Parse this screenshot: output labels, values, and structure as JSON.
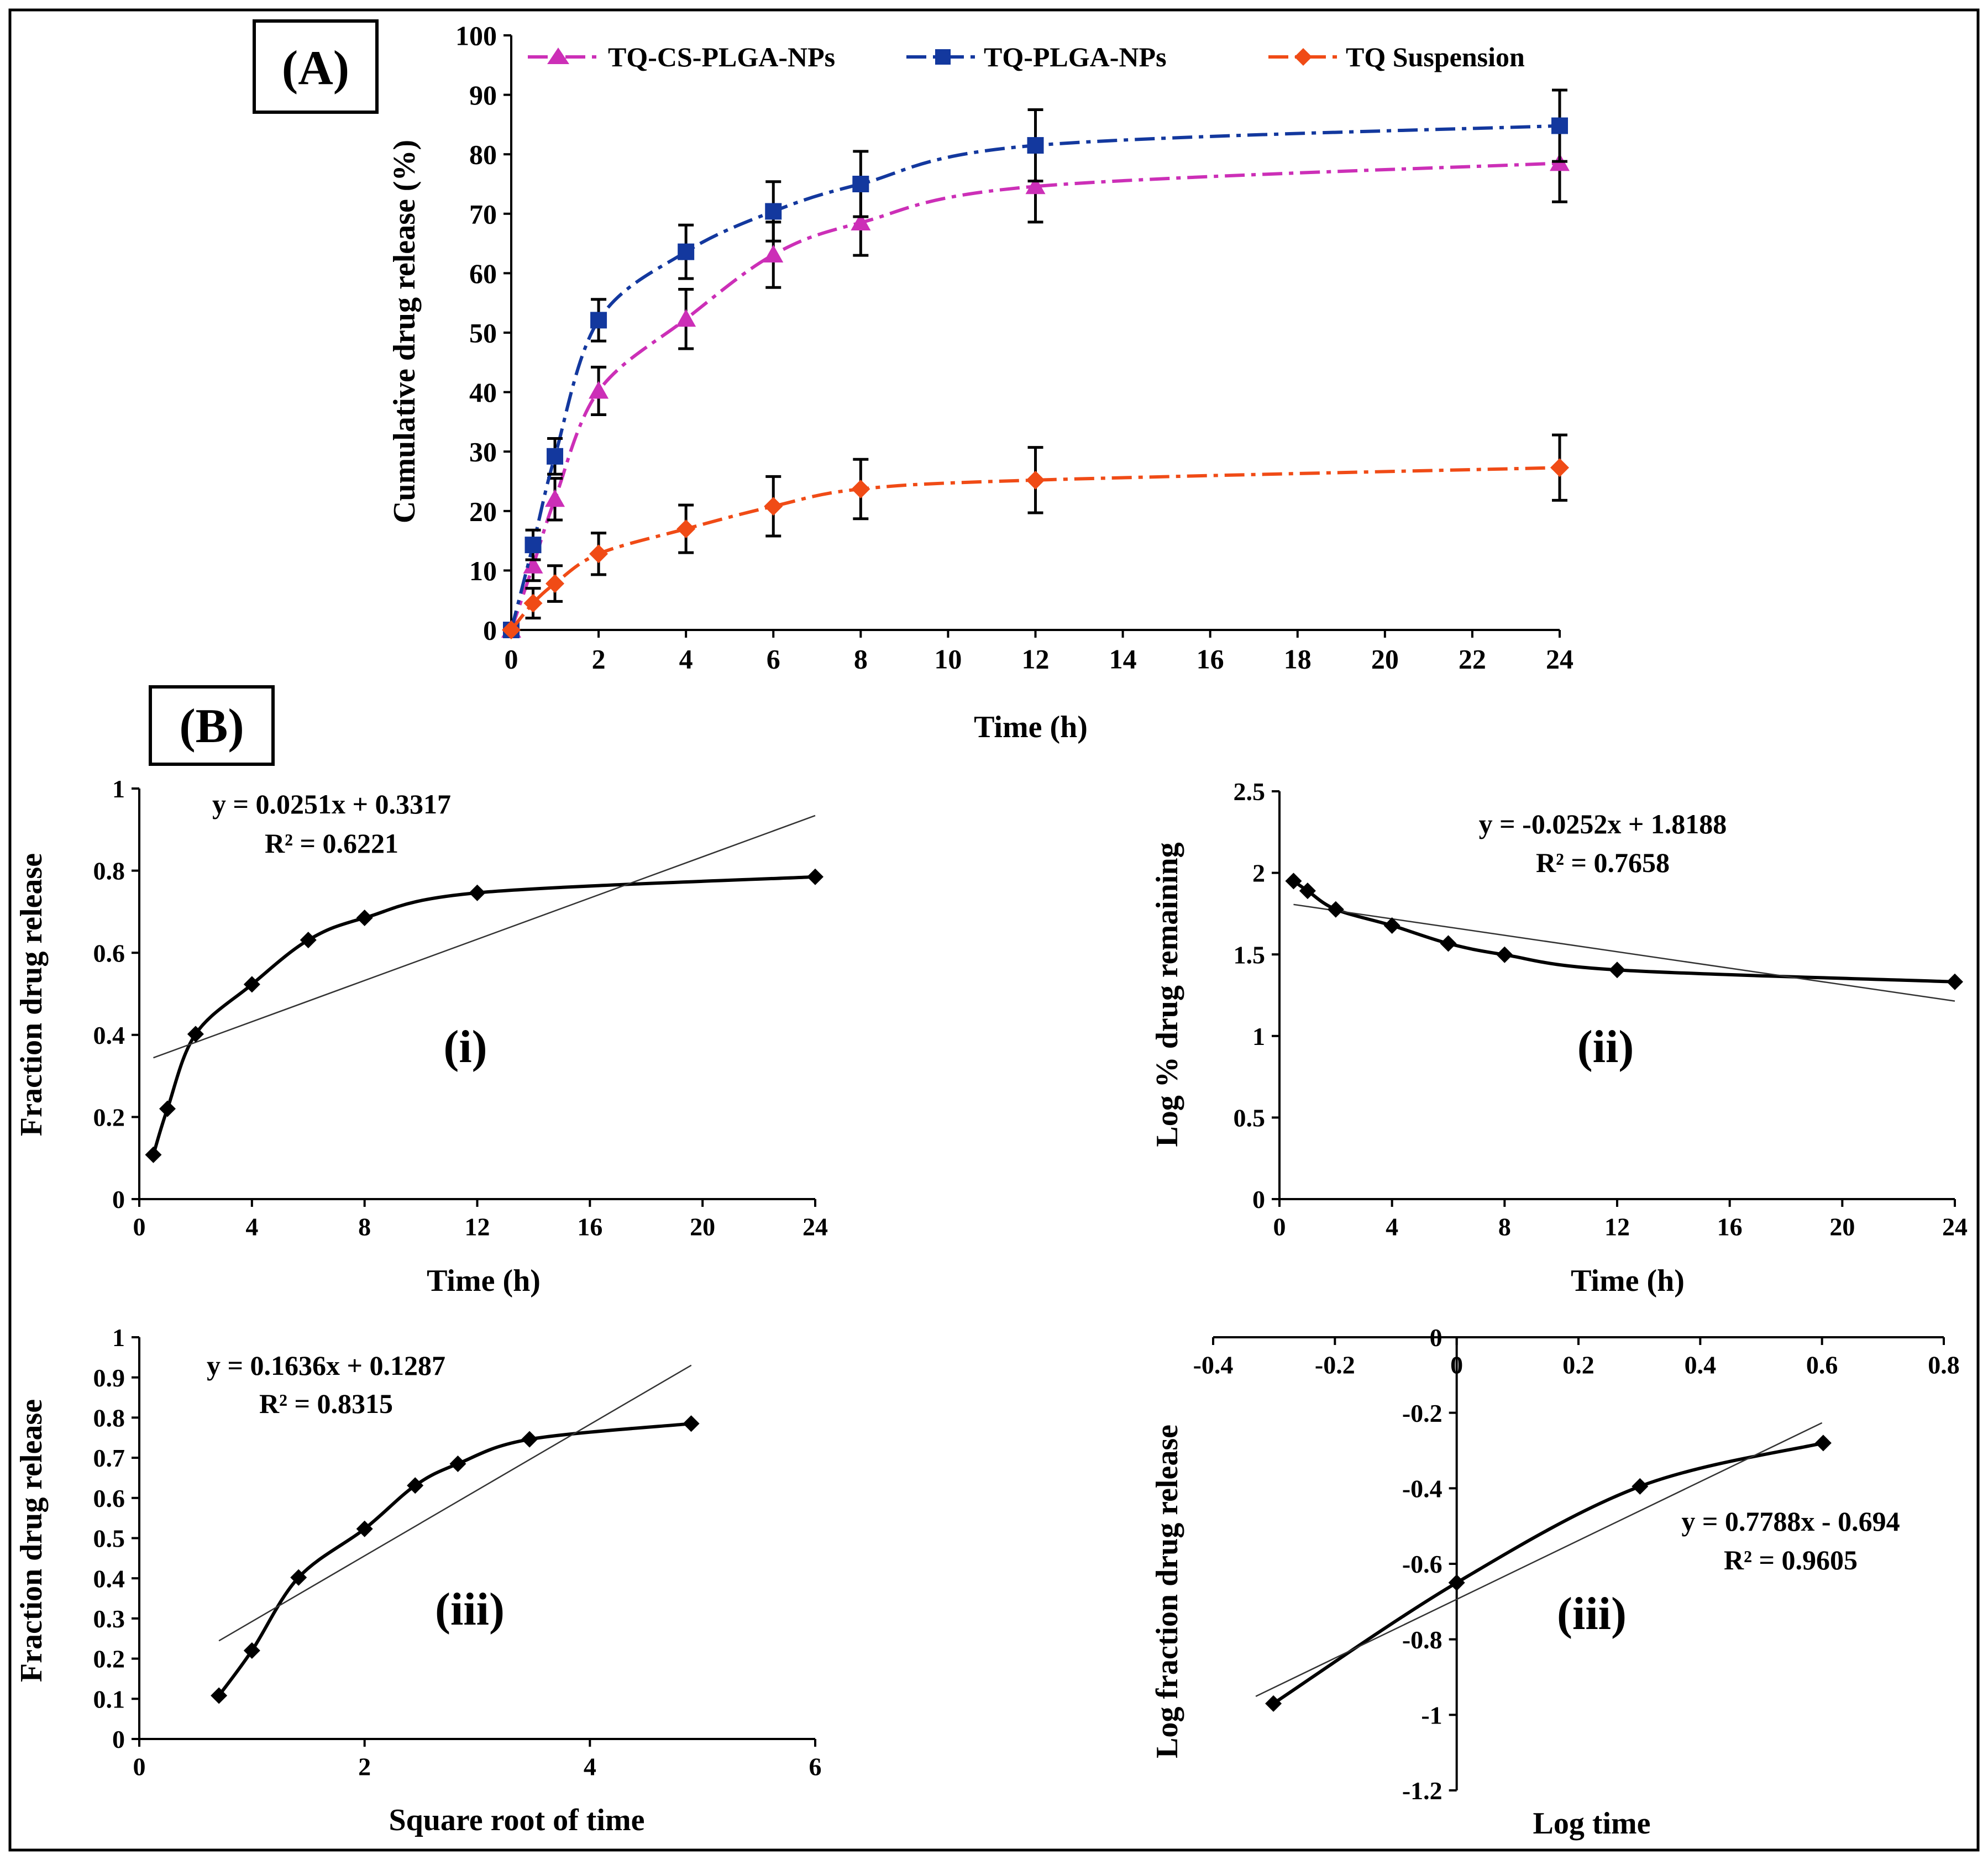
{
  "panel_a_label": "(A)",
  "panel_b_label": "(B)",
  "colors": {
    "tq_cs_plga": "#cc2fb7",
    "tq_plga": "#13389e",
    "tq_suspension": "#f04b16",
    "fit_line": "#333333",
    "data_line": "#000000"
  },
  "chart_data": [
    {
      "id": "A",
      "type": "line",
      "xlabel": "Time (h)",
      "ylabel": "Cumulative  drug  release  (%)",
      "xlim": [
        0,
        24
      ],
      "ylim": [
        0,
        100
      ],
      "xticks": [
        0,
        2,
        4,
        6,
        8,
        10,
        12,
        14,
        16,
        18,
        20,
        22,
        24
      ],
      "yticks": [
        0,
        10,
        20,
        30,
        40,
        50,
        60,
        70,
        80,
        90,
        100
      ],
      "x": [
        0,
        0.5,
        1,
        2,
        4,
        6,
        8,
        12,
        24
      ],
      "legend_position": "top",
      "series": [
        {
          "name": "TQ-CS-PLGA-NPs",
          "marker": "triangle",
          "color": "#cc2fb7",
          "values": [
            0,
            10.8,
            22.0,
            40.2,
            52.3,
            63.1,
            68.5,
            74.6,
            78.5
          ],
          "errors": [
            0,
            2.5,
            3.5,
            4.0,
            5.0,
            5.5,
            5.5,
            6.0,
            6.5
          ]
        },
        {
          "name": "TQ-PLGA-NPs",
          "marker": "square",
          "color": "#13389e",
          "values": [
            0,
            14.3,
            29.2,
            52.1,
            63.6,
            70.4,
            75.0,
            81.5,
            84.8
          ],
          "errors": [
            0,
            2.5,
            3.0,
            3.5,
            4.5,
            5.0,
            5.5,
            6.0,
            6.0
          ]
        },
        {
          "name": "TQ Suspension",
          "marker": "diamond",
          "color": "#f04b16",
          "values": [
            0,
            4.5,
            7.8,
            12.8,
            17.0,
            20.8,
            23.7,
            25.2,
            27.3
          ],
          "errors": [
            0,
            2.5,
            3.0,
            3.5,
            4.0,
            5.0,
            5.0,
            5.5,
            5.5
          ]
        }
      ]
    },
    {
      "id": "i",
      "type": "scatter",
      "label": "(i)",
      "xlabel": "Time  (h)",
      "ylabel": "Fraction  drug  release",
      "xlim": [
        0,
        24
      ],
      "ylim": [
        0,
        1
      ],
      "xticks": [
        0,
        4,
        8,
        12,
        16,
        20,
        24
      ],
      "yticks": [
        0,
        0.2,
        0.4,
        0.6,
        0.8,
        1
      ],
      "x": [
        0.5,
        1,
        2,
        4,
        6,
        8,
        12,
        24
      ],
      "y": [
        0.108,
        0.22,
        0.402,
        0.523,
        0.631,
        0.685,
        0.746,
        0.785
      ],
      "fit": {
        "slope": 0.0251,
        "intercept": 0.3317,
        "x_range": [
          0.5,
          24
        ]
      },
      "equation": "y = 0.0251x + 0.3317",
      "r2": "R² = 0.6221"
    },
    {
      "id": "ii",
      "type": "scatter",
      "label": "(ii)",
      "xlabel": "Time  (h)",
      "ylabel": "Log  %  drug  remaining",
      "xlim": [
        0,
        24
      ],
      "ylim": [
        0,
        2.5
      ],
      "xticks": [
        0,
        4,
        8,
        12,
        16,
        20,
        24
      ],
      "yticks": [
        0,
        0.5,
        1,
        1.5,
        2,
        2.5
      ],
      "x": [
        0.5,
        1,
        2,
        4,
        6,
        8,
        12,
        24
      ],
      "y": [
        1.95,
        1.89,
        1.776,
        1.677,
        1.567,
        1.498,
        1.405,
        1.332
      ],
      "fit": {
        "slope": -0.0252,
        "intercept": 1.8188,
        "x_range": [
          0.5,
          24
        ]
      },
      "equation": "y = -0.0252x + 1.8188",
      "r2": "R² = 0.7658"
    },
    {
      "id": "iii-a",
      "type": "scatter",
      "label": "(iii)",
      "xlabel": "Square  root  of  time",
      "ylabel": "Fraction  drug  release",
      "xlim": [
        0,
        6
      ],
      "ylim": [
        0,
        1
      ],
      "xticks": [
        0,
        2,
        4,
        6
      ],
      "yticks": [
        0,
        0.1,
        0.2,
        0.3,
        0.4,
        0.5,
        0.6,
        0.7,
        0.8,
        0.9,
        1
      ],
      "x": [
        0.707,
        1.0,
        1.414,
        2.0,
        2.449,
        2.828,
        3.464,
        4.899
      ],
      "y": [
        0.108,
        0.22,
        0.402,
        0.523,
        0.631,
        0.685,
        0.746,
        0.785
      ],
      "fit": {
        "slope": 0.1636,
        "intercept": 0.1287,
        "x_range": [
          0.707,
          4.9
        ]
      },
      "equation": "y = 0.1636x + 0.1287",
      "r2": "R² = 0.8315"
    },
    {
      "id": "iii-b",
      "type": "scatter",
      "label": "(iii)",
      "xlabel": "Log  time",
      "ylabel": "Log  fraction  drug  release",
      "xlim": [
        -0.4,
        0.8
      ],
      "ylim": [
        -1.2,
        0
      ],
      "xticks": [
        -0.4,
        -0.2,
        0,
        0.2,
        0.4,
        0.6,
        0.8
      ],
      "xtick_labels": [
        "-0.4",
        "-0.2",
        "0",
        "0.2",
        "0.4",
        "0.6",
        "0.8"
      ],
      "yticks": [
        -1.2,
        -1,
        -0.8,
        -0.6,
        -0.4,
        -0.2,
        0
      ],
      "ytick_labels": [
        "-1.2",
        "-1",
        "-0.8",
        "-0.6",
        "-0.4",
        "-0.2",
        "0"
      ],
      "x": [
        -0.301,
        0,
        0.301,
        0.602
      ],
      "y": [
        -0.97,
        -0.65,
        -0.395,
        -0.28
      ],
      "fit": {
        "slope": 0.7788,
        "intercept": -0.694,
        "x_range": [
          -0.33,
          0.6
        ]
      },
      "equation": "y = 0.7788x - 0.694",
      "r2": "R² = 0.9605"
    }
  ]
}
